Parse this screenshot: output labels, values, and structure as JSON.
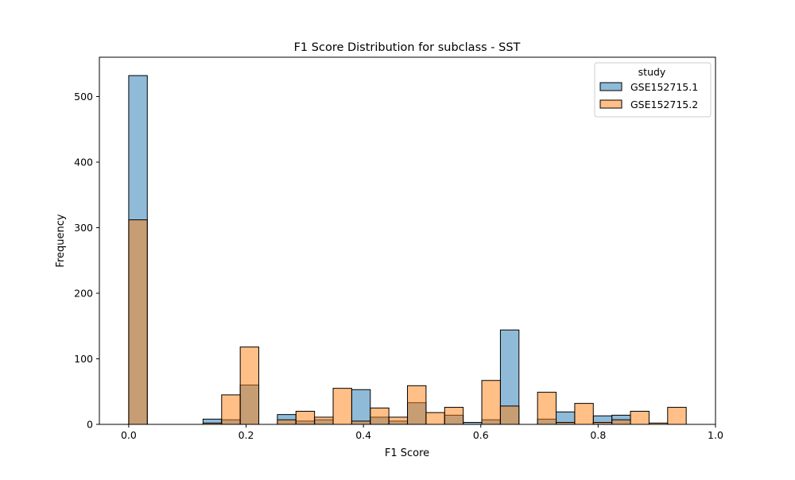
{
  "chart_data": {
    "type": "histogram",
    "title": "F1 Score Distribution for subclass - SST",
    "xlabel": "F1 Score",
    "ylabel": "Frequency",
    "xlim": [
      -0.05,
      1.0
    ],
    "ylim": [
      0,
      560
    ],
    "xticks": [
      0.0,
      0.2,
      0.4,
      0.6,
      0.8,
      1.0
    ],
    "xtick_labels": [
      "0.0",
      "0.2",
      "0.4",
      "0.6",
      "0.8",
      "1.0"
    ],
    "yticks": [
      0,
      100,
      200,
      300,
      400,
      500
    ],
    "ytick_labels": [
      "0",
      "100",
      "200",
      "300",
      "400",
      "500"
    ],
    "bin_start": 0.0,
    "bin_width": 0.03167,
    "legend": {
      "title": "study",
      "position": "upper right",
      "entries": [
        "GSE152715.1",
        "GSE152715.2"
      ]
    },
    "series": [
      {
        "name": "GSE152715.1",
        "color": "#1f77b4",
        "values": [
          532,
          0,
          0,
          0,
          8,
          7,
          60,
          0,
          15,
          5,
          7,
          0,
          53,
          11,
          5,
          33,
          0,
          14,
          3,
          7,
          144,
          0,
          8,
          19,
          0,
          13,
          14,
          0,
          0,
          0
        ]
      },
      {
        "name": "GSE152715.2",
        "color": "#ff7f0e",
        "values": [
          312,
          0,
          0,
          0,
          2,
          45,
          118,
          0,
          7,
          20,
          11,
          55,
          5,
          25,
          11,
          59,
          18,
          26,
          0,
          67,
          28,
          0,
          49,
          3,
          32,
          3,
          7,
          20,
          2,
          26
        ]
      }
    ]
  }
}
